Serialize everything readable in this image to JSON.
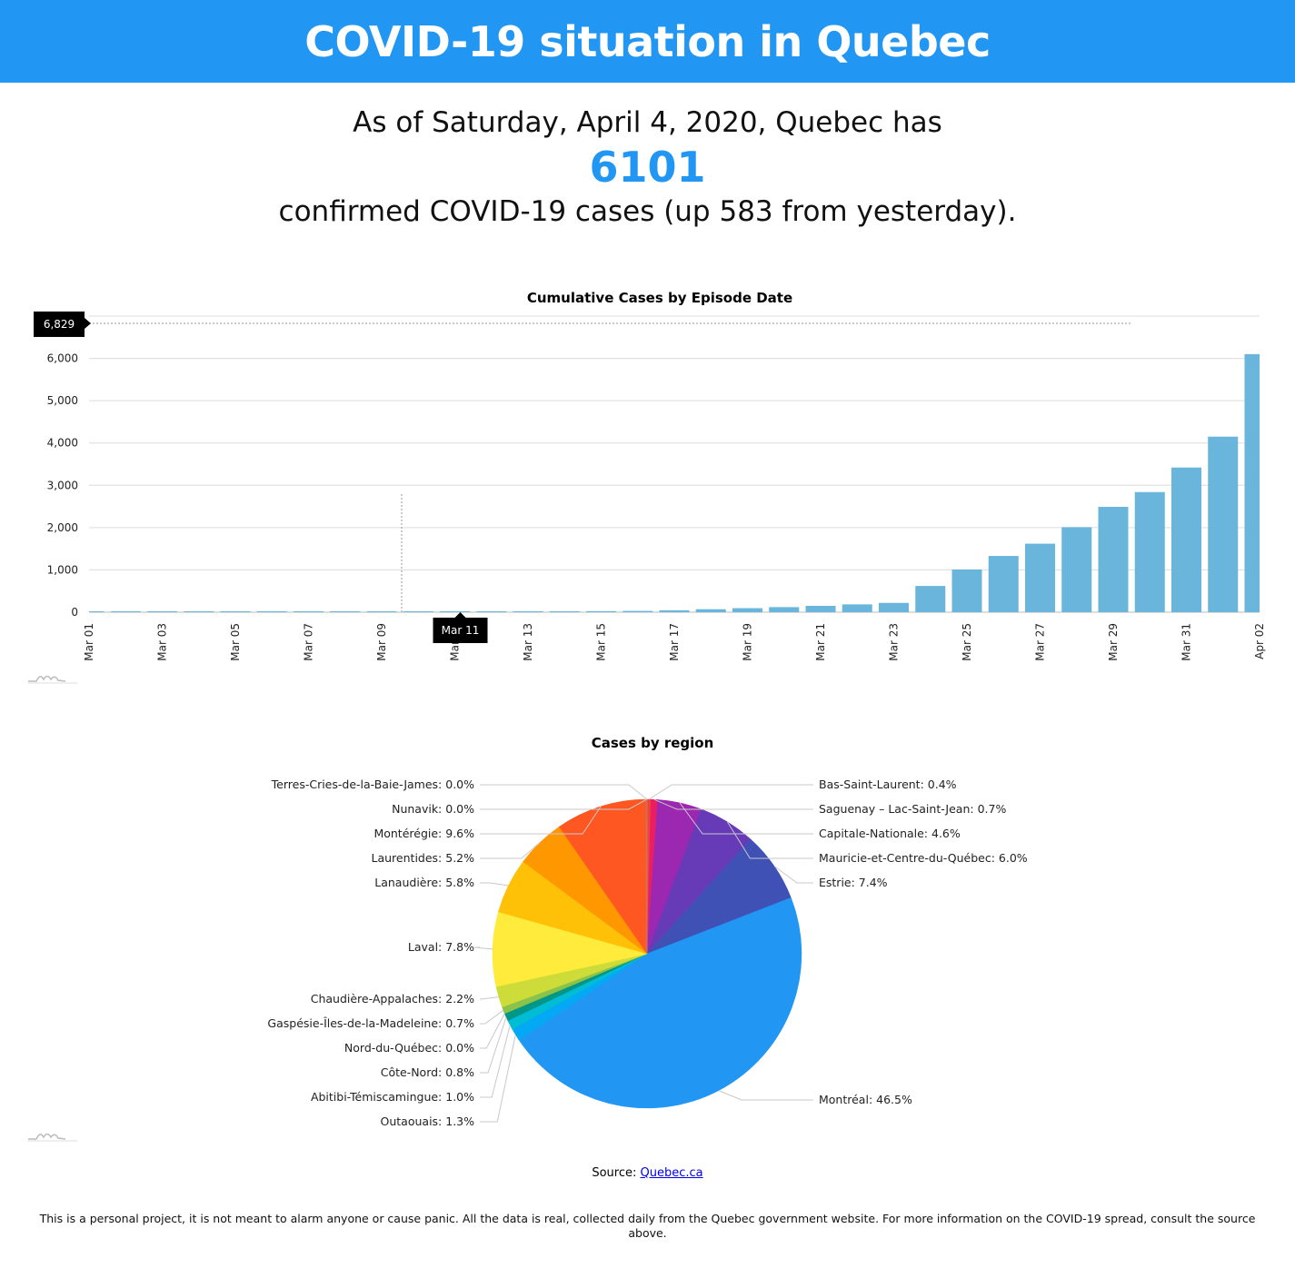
{
  "header": {
    "title": "COVID-19 situation in Quebec"
  },
  "summary": {
    "line1": "As of Saturday, April 4, 2020, Quebec has",
    "total": "6101",
    "line2": "confirmed COVID-19 cases (up 583 from yesterday)."
  },
  "chart_data": [
    {
      "type": "bar",
      "title": "Cumulative Cases by Episode Date",
      "xlabel": "",
      "ylabel": "",
      "ylim": [
        0,
        7000
      ],
      "yticks": [
        0,
        1000,
        2000,
        3000,
        4000,
        5000,
        6000,
        7000
      ],
      "ytick_labels": [
        "0",
        "1,000",
        "2,000",
        "3,000",
        "4,000",
        "5,000",
        "6,000",
        "7,000"
      ],
      "categories": [
        "Mar 01",
        "Mar 02",
        "Mar 03",
        "Mar 04",
        "Mar 05",
        "Mar 06",
        "Mar 07",
        "Mar 08",
        "Mar 09",
        "Mar 10",
        "Mar 11",
        "Mar 12",
        "Mar 13",
        "Mar 14",
        "Mar 15",
        "Mar 16",
        "Mar 17",
        "Mar 18",
        "Mar 19",
        "Mar 20",
        "Mar 21",
        "Mar 22",
        "Mar 23",
        "Mar 24",
        "Mar 25",
        "Mar 26",
        "Mar 27",
        "Mar 28",
        "Mar 29",
        "Mar 30",
        "Mar 31",
        "Apr 01",
        "Apr 02"
      ],
      "xtick_labels": [
        "Mar 01",
        "Mar 03",
        "Mar 05",
        "Mar 07",
        "Mar 09",
        "Mar 11",
        "Mar 13",
        "Mar 15",
        "Mar 17",
        "Mar 19",
        "Mar 21",
        "Mar 23",
        "Mar 25",
        "Mar 27",
        "Mar 29",
        "Mar 31",
        "Apr 02"
      ],
      "values": [
        3,
        3,
        3,
        3,
        3,
        3,
        3,
        3,
        3,
        4,
        8,
        12,
        17,
        22,
        25,
        30,
        45,
        70,
        95,
        120,
        150,
        185,
        220,
        620,
        1010,
        1330,
        1620,
        2010,
        2490,
        2840,
        3420,
        4150,
        6101
      ],
      "color": "#69b5dc",
      "grid": true,
      "crosshair": {
        "y_label": "6,829",
        "y_value": 6829,
        "x_label": "Mar 11"
      }
    },
    {
      "type": "pie",
      "title": "Cases by region",
      "slices": [
        {
          "label": "Bas-Saint-Laurent: 0.4%",
          "value": 0.4,
          "color": "#f44336"
        },
        {
          "label": "Saguenay – Lac-Saint-Jean: 0.7%",
          "value": 0.7,
          "color": "#e91e63"
        },
        {
          "label": "Capitale-Nationale: 4.6%",
          "value": 4.6,
          "color": "#9c27b0"
        },
        {
          "label": "Mauricie-et-Centre-du-Québec: 6.0%",
          "value": 6.0,
          "color": "#673ab7"
        },
        {
          "label": "Estrie: 7.4%",
          "value": 7.4,
          "color": "#3f51b5"
        },
        {
          "label": "Montréal: 46.5%",
          "value": 46.5,
          "color": "#2196f3"
        },
        {
          "label": "Outaouais: 1.3%",
          "value": 1.3,
          "color": "#03a9f4"
        },
        {
          "label": "Abitibi-Témiscamingue: 1.0%",
          "value": 1.0,
          "color": "#00bcd4"
        },
        {
          "label": "Côte-Nord: 0.8%",
          "value": 0.8,
          "color": "#009688"
        },
        {
          "label": "Nord-du-Québec: 0.0%",
          "value": 0.02,
          "color": "#4caf50"
        },
        {
          "label": "Gaspésie-Îles-de-la-Madeleine: 0.7%",
          "value": 0.7,
          "color": "#8bc34a"
        },
        {
          "label": "Chaudière-Appalaches: 2.2%",
          "value": 2.2,
          "color": "#cddc39"
        },
        {
          "label": "Laval: 7.8%",
          "value": 7.8,
          "color": "#ffeb3b"
        },
        {
          "label": "Lanaudière: 5.8%",
          "value": 5.8,
          "color": "#ffc107"
        },
        {
          "label": "Laurentides: 5.2%",
          "value": 5.2,
          "color": "#ff9800"
        },
        {
          "label": "Montérégie: 9.6%",
          "value": 9.6,
          "color": "#ff5722"
        },
        {
          "label": "Nunavik: 0.0%",
          "value": 0.02,
          "color": "#795548"
        },
        {
          "label": "Terres-Cries-de-la-Baie-James: 0.0%",
          "value": 0.02,
          "color": "#9e9e9e"
        }
      ]
    }
  ],
  "source": {
    "prefix": "Source:",
    "link_text": "Quebec.ca"
  },
  "disclaimer": "This is a personal project, it is not meant to alarm anyone or cause panic. All the data is real, collected daily from the Quebec government website. For more information on the COVID-19 spread, consult the source above."
}
